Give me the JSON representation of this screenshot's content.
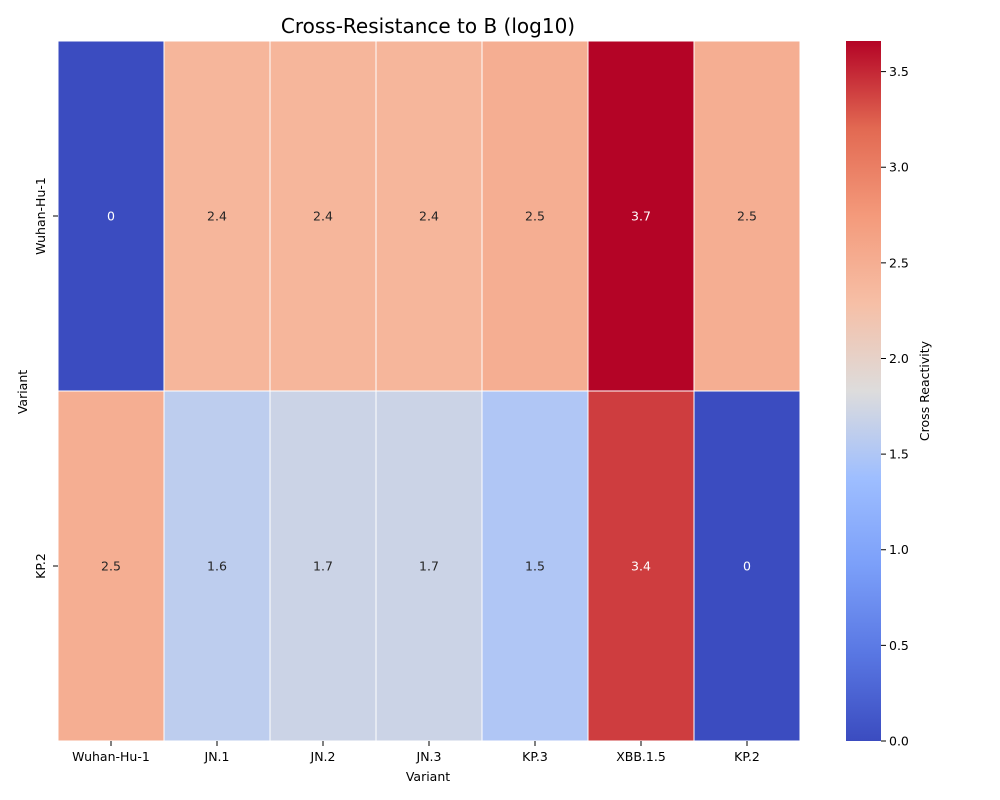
{
  "chart_data": {
    "type": "heatmap",
    "title": "Cross-Resistance to B (log10)",
    "xlabel": "Variant",
    "ylabel": "Variant",
    "x_categories": [
      "Wuhan-Hu-1",
      "JN.1",
      "JN.2",
      "JN.3",
      "KP.3",
      "XBB.1.5",
      "KP.2"
    ],
    "y_categories": [
      "Wuhan-Hu-1",
      "KP.2"
    ],
    "values": [
      [
        0,
        2.4,
        2.4,
        2.4,
        2.5,
        3.7,
        2.5
      ],
      [
        2.5,
        1.6,
        1.7,
        1.7,
        1.5,
        3.4,
        0
      ]
    ],
    "value_labels": [
      [
        "0",
        "2.4",
        "2.4",
        "2.4",
        "2.5",
        "3.7",
        "2.5"
      ],
      [
        "2.5",
        "1.6",
        "1.7",
        "1.7",
        "1.5",
        "3.4",
        "0"
      ]
    ],
    "colormap": "coolwarm",
    "vmin": 0,
    "vmax": 3.66,
    "colorbar": {
      "label": "Cross Reactivity",
      "ticks": [
        0.0,
        0.5,
        1.0,
        1.5,
        2.0,
        2.5,
        3.0,
        3.5
      ],
      "tick_labels": [
        "0.0",
        "0.5",
        "1.0",
        "1.5",
        "2.0",
        "2.5",
        "3.0",
        "3.5"
      ]
    },
    "grid": false
  }
}
